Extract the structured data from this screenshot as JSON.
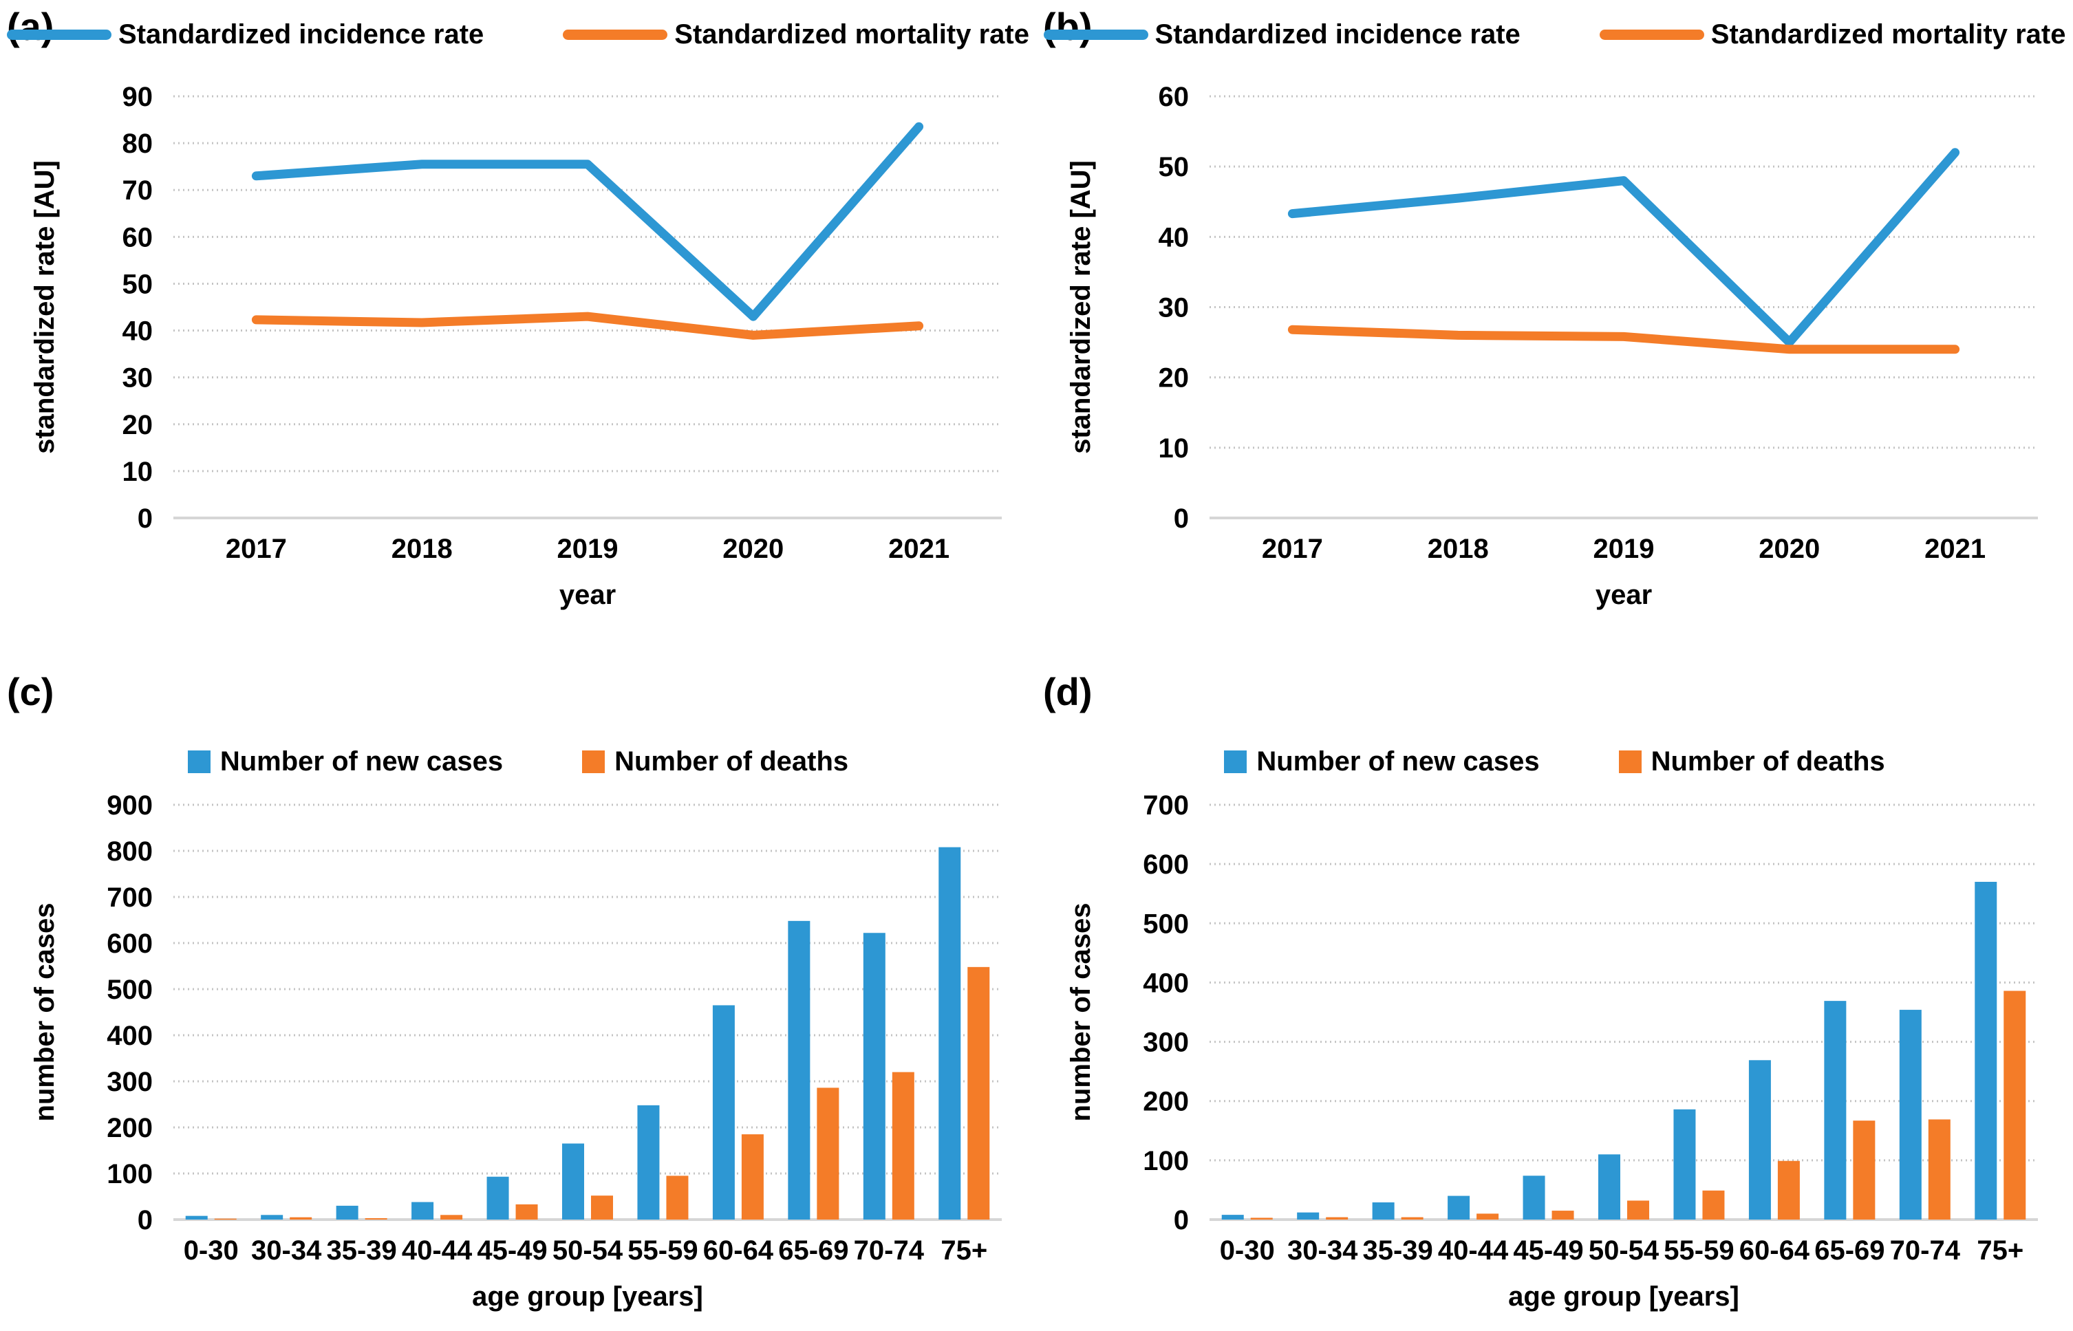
{
  "figure": {
    "background": "#ffffff"
  },
  "colors": {
    "incidence_blue": "#2d97d3",
    "mortality_orange": "#f47c28"
  },
  "chart_data": [
    {
      "panel_label": "(a)",
      "type": "line",
      "x_title": "year",
      "y_title": "standardized rate [AU]",
      "categories": [
        "2017",
        "2018",
        "2019",
        "2020",
        "2021"
      ],
      "ylim": [
        0,
        90
      ],
      "ystep": 10,
      "grid": true,
      "legend_position": "top",
      "series": [
        {
          "name": "Standardized incidence rate",
          "color": "#2d97d3",
          "values": [
            73,
            75.5,
            75.5,
            43,
            83.5
          ]
        },
        {
          "name": "Standardized mortality rate",
          "color": "#f47c28",
          "values": [
            42.3,
            41.7,
            43,
            39,
            41
          ]
        }
      ]
    },
    {
      "panel_label": "(b)",
      "type": "line",
      "x_title": "year",
      "y_title": "standardized rate [AU]",
      "categories": [
        "2017",
        "2018",
        "2019",
        "2020",
        "2021"
      ],
      "ylim": [
        0,
        60
      ],
      "ystep": 10,
      "grid": true,
      "legend_position": "top",
      "series": [
        {
          "name": "Standardized incidence rate",
          "color": "#2d97d3",
          "values": [
            43.3,
            45.5,
            48,
            25,
            52
          ]
        },
        {
          "name": "Standardized mortality rate",
          "color": "#f47c28",
          "values": [
            26.8,
            26,
            25.8,
            24,
            24
          ]
        }
      ]
    },
    {
      "panel_label": "(c)",
      "type": "bar",
      "x_title": "age group [years]",
      "y_title": "number of cases",
      "categories": [
        "0-30",
        "30-34",
        "35-39",
        "40-44",
        "45-49",
        "50-54",
        "55-59",
        "60-64",
        "65-69",
        "70-74",
        "75+"
      ],
      "ylim": [
        0,
        900
      ],
      "ystep": 100,
      "grid": true,
      "legend_position": "top",
      "series": [
        {
          "name": "Number of new cases",
          "color": "#2d97d3",
          "values": [
            8,
            10,
            30,
            38,
            93,
            165,
            248,
            465,
            648,
            622,
            808
          ]
        },
        {
          "name": "Number of deaths",
          "color": "#f47c28",
          "values": [
            2,
            5,
            3,
            10,
            33,
            52,
            95,
            185,
            286,
            320,
            548
          ]
        }
      ]
    },
    {
      "panel_label": "(d)",
      "type": "bar",
      "x_title": "age group [years]",
      "y_title": "number of cases",
      "categories": [
        "0-30",
        "30-34",
        "35-39",
        "40-44",
        "45-49",
        "50-54",
        "55-59",
        "60-64",
        "65-69",
        "70-74",
        "75+"
      ],
      "ylim": [
        0,
        700
      ],
      "ystep": 100,
      "grid": true,
      "legend_position": "top",
      "series": [
        {
          "name": "Number of new cases",
          "color": "#2d97d3",
          "values": [
            8,
            12,
            29,
            40,
            74,
            110,
            186,
            269,
            369,
            354,
            570
          ]
        },
        {
          "name": "Number of deaths",
          "color": "#f47c28",
          "values": [
            3,
            4,
            4,
            10,
            15,
            32,
            49,
            99,
            167,
            169,
            386
          ]
        }
      ]
    }
  ]
}
